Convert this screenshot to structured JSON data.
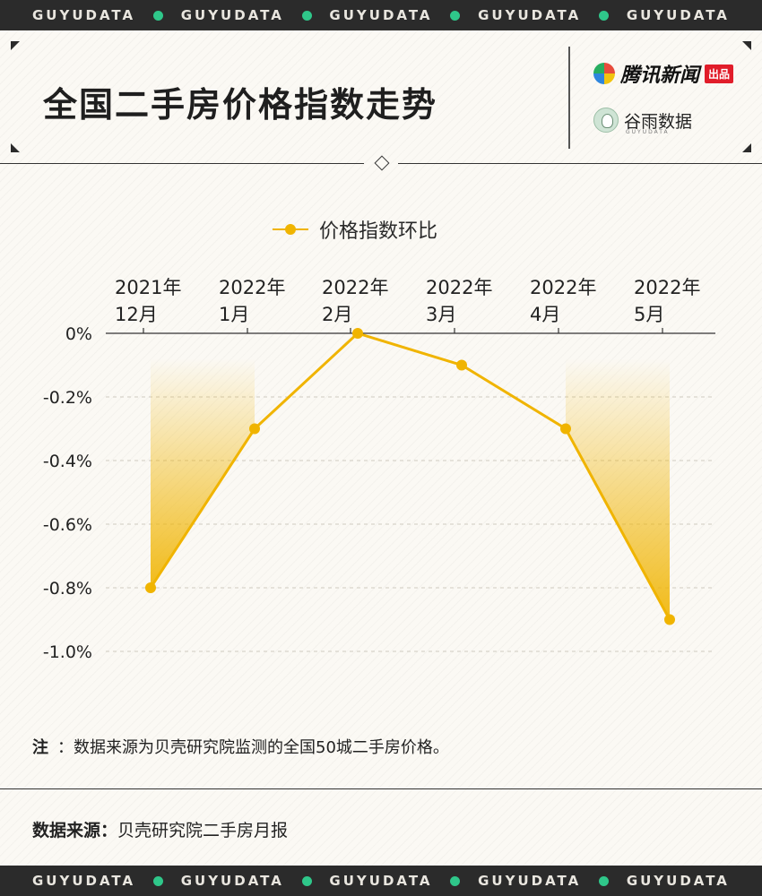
{
  "band": {
    "text": "GUYUDATA",
    "dot_color": "#2fc78a",
    "repeats": 5
  },
  "header": {
    "title": "全国二手房价格指数走势",
    "brand_primary": "腾讯新闻",
    "brand_primary_tag": "出品",
    "brand_secondary": "谷雨数据",
    "brand_secondary_sub": "GUYUDATA"
  },
  "legend": {
    "label": "价格指数环比",
    "color": "#f0b400"
  },
  "chart_data": {
    "type": "line",
    "categories": [
      [
        "2021年",
        "12月"
      ],
      [
        "2022年",
        "1月"
      ],
      [
        "2022年",
        "2月"
      ],
      [
        "2022年",
        "3月"
      ],
      [
        "2022年",
        "4月"
      ],
      [
        "2022年",
        "5月"
      ]
    ],
    "series": [
      {
        "name": "价格指数环比",
        "values": [
          -0.8,
          -0.3,
          0.0,
          -0.1,
          -0.3,
          -0.9
        ],
        "color": "#f0b400"
      }
    ],
    "y_ticks": [
      0,
      -0.2,
      -0.4,
      -0.6,
      -0.8,
      -1.0
    ],
    "y_tick_labels": [
      "0%",
      "-0.2%",
      "-0.4%",
      "-0.6%",
      "-0.8%",
      "-1.0%"
    ],
    "ylim": [
      -1.0,
      0
    ],
    "x_axis_position": "top",
    "grid": true,
    "legend_position": "top-center"
  },
  "footer": {
    "note_label": "注",
    "note_text": "：数据来源为贝壳研究院监测的全国50城二手房价格。",
    "source_label": "数据来源：",
    "source_text": "贝壳研究院二手房月报"
  }
}
